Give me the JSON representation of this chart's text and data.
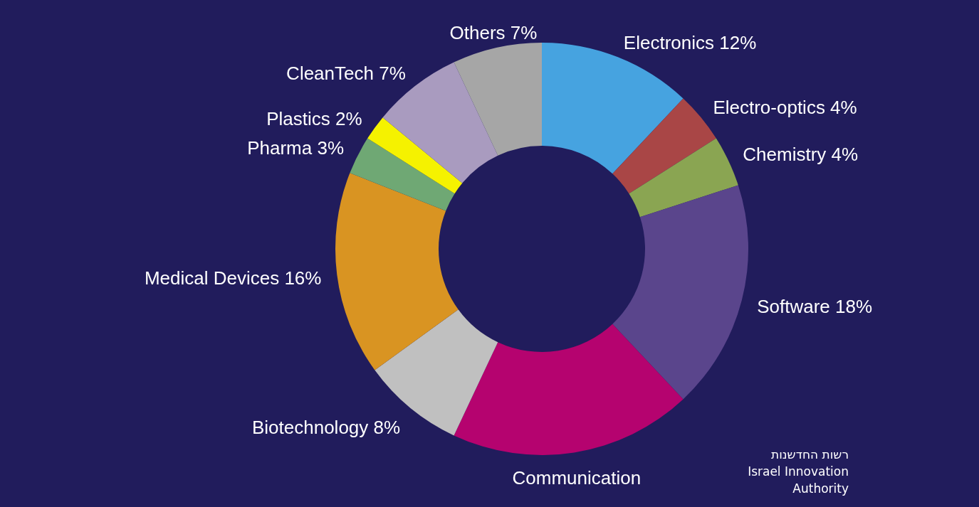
{
  "chart_data": {
    "type": "donut",
    "categories": [
      "Electronics",
      "Electro-optics",
      "Chemistry",
      "Software",
      "Communication",
      "Biotechnology",
      "Medical Devices",
      "Pharma",
      "Plastics",
      "CleanTech",
      "Others"
    ],
    "values": [
      12,
      4,
      4,
      18,
      19,
      8,
      16,
      3,
      2,
      7,
      7
    ],
    "value_labels": [
      "12%",
      "4%",
      "4%",
      "18%",
      null,
      "8%",
      "16%",
      "3%",
      "2%",
      "7%",
      "7%"
    ],
    "colors": [
      "#46a3e0",
      "#a94646",
      "#8aa552",
      "#5a458c",
      "#b5036f",
      "#c0c0c0",
      "#d99422",
      "#6fa874",
      "#f5f200",
      "#a99bbf",
      "#a6a6a6"
    ],
    "annotations": [
      "רשות החדשנות",
      "Israel Innovation",
      "Authority"
    ]
  }
}
